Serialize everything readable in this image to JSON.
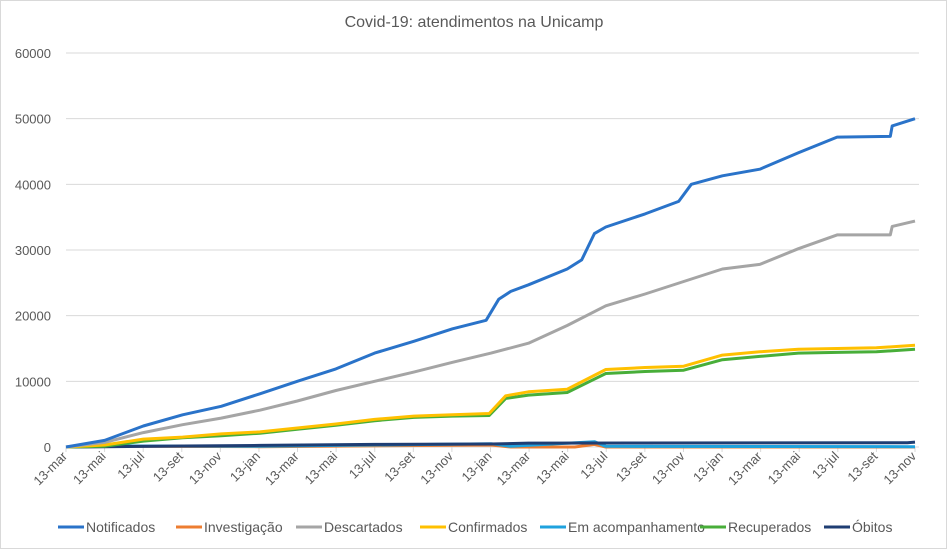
{
  "chart_data": {
    "type": "line",
    "title": "Covid-19: atendimentos  na Unicamp",
    "xlabel": "",
    "ylabel": "",
    "ylim": [
      0,
      60000
    ],
    "yticks": [
      0,
      10000,
      20000,
      30000,
      40000,
      50000,
      60000
    ],
    "xlim": [
      "2020-03-13",
      "2023-11-13"
    ],
    "xtick_labels": [
      "13-mar",
      "13-mai",
      "13-jul",
      "13-set",
      "13-nov",
      "13-jan",
      "13-mar",
      "13-mai",
      "13-jul",
      "13-set",
      "13-nov",
      "13-jan",
      "13-mar",
      "13-mai",
      "13-jul",
      "13-set",
      "13-nov",
      "13-jan",
      "13-mar",
      "13-mai",
      "13-jul",
      "13-set",
      "13-nov"
    ],
    "grid": "horizontal",
    "legend_position": "bottom",
    "series": [
      {
        "name": "Notificados",
        "color": "#2A73C9",
        "points": [
          [
            "2020-03-13",
            0
          ],
          [
            "2020-05-13",
            1000
          ],
          [
            "2020-07-13",
            3200
          ],
          [
            "2020-09-13",
            4900
          ],
          [
            "2020-11-13",
            6200
          ],
          [
            "2021-01-13",
            8100
          ],
          [
            "2021-03-13",
            10000
          ],
          [
            "2021-05-13",
            11900
          ],
          [
            "2021-07-13",
            14300
          ],
          [
            "2021-09-13",
            16100
          ],
          [
            "2021-11-13",
            18000
          ],
          [
            "2022-01-05",
            19300
          ],
          [
            "2022-01-25",
            22500
          ],
          [
            "2022-02-13",
            23700
          ],
          [
            "2022-03-13",
            24700
          ],
          [
            "2022-05-13",
            27100
          ],
          [
            "2022-06-05",
            28500
          ],
          [
            "2022-06-25",
            32500
          ],
          [
            "2022-07-13",
            33500
          ],
          [
            "2022-09-13",
            35500
          ],
          [
            "2022-11-05",
            37400
          ],
          [
            "2022-11-25",
            40000
          ],
          [
            "2023-01-13",
            41300
          ],
          [
            "2023-03-13",
            42300
          ],
          [
            "2023-05-13",
            44800
          ],
          [
            "2023-07-13",
            47200
          ],
          [
            "2023-10-05",
            47300
          ],
          [
            "2023-10-08",
            48900
          ],
          [
            "2023-11-13",
            50000
          ]
        ]
      },
      {
        "name": "Investigação",
        "color": "#ED7D31",
        "points": [
          [
            "2020-03-13",
            0
          ],
          [
            "2020-06-13",
            100
          ],
          [
            "2021-01-13",
            50
          ],
          [
            "2022-01-13",
            300
          ],
          [
            "2022-02-13",
            0
          ],
          [
            "2022-05-25",
            0
          ],
          [
            "2022-06-25",
            400
          ],
          [
            "2022-07-13",
            0
          ],
          [
            "2023-11-13",
            0
          ]
        ]
      },
      {
        "name": "Descartados",
        "color": "#A5A5A5",
        "points": [
          [
            "2020-03-13",
            0
          ],
          [
            "2020-05-13",
            700
          ],
          [
            "2020-07-13",
            2200
          ],
          [
            "2020-09-13",
            3400
          ],
          [
            "2020-11-13",
            4400
          ],
          [
            "2021-01-13",
            5600
          ],
          [
            "2021-03-13",
            7000
          ],
          [
            "2021-05-13",
            8600
          ],
          [
            "2021-07-13",
            10000
          ],
          [
            "2021-09-13",
            11400
          ],
          [
            "2021-11-13",
            12900
          ],
          [
            "2022-01-13",
            14300
          ],
          [
            "2022-03-13",
            15800
          ],
          [
            "2022-05-13",
            18500
          ],
          [
            "2022-07-13",
            21500
          ],
          [
            "2022-09-13",
            23300
          ],
          [
            "2022-11-13",
            25200
          ],
          [
            "2023-01-13",
            27100
          ],
          [
            "2023-03-13",
            27800
          ],
          [
            "2023-05-13",
            30200
          ],
          [
            "2023-07-13",
            32300
          ],
          [
            "2023-10-05",
            32300
          ],
          [
            "2023-10-08",
            33600
          ],
          [
            "2023-11-13",
            34400
          ]
        ]
      },
      {
        "name": "Confirmados",
        "color": "#FFC000",
        "points": [
          [
            "2020-03-13",
            0
          ],
          [
            "2020-05-13",
            300
          ],
          [
            "2020-07-13",
            1200
          ],
          [
            "2020-09-13",
            1500
          ],
          [
            "2020-11-13",
            2000
          ],
          [
            "2021-01-13",
            2300
          ],
          [
            "2021-03-13",
            2900
          ],
          [
            "2021-05-13",
            3500
          ],
          [
            "2021-07-13",
            4200
          ],
          [
            "2021-09-13",
            4700
          ],
          [
            "2021-11-13",
            4900
          ],
          [
            "2022-01-10",
            5100
          ],
          [
            "2022-02-05",
            7800
          ],
          [
            "2022-03-13",
            8400
          ],
          [
            "2022-05-13",
            8800
          ],
          [
            "2022-07-13",
            11800
          ],
          [
            "2022-09-13",
            12100
          ],
          [
            "2022-11-13",
            12300
          ],
          [
            "2023-01-13",
            14000
          ],
          [
            "2023-03-13",
            14500
          ],
          [
            "2023-05-13",
            14900
          ],
          [
            "2023-07-13",
            15000
          ],
          [
            "2023-09-13",
            15100
          ],
          [
            "2023-11-13",
            15500
          ]
        ]
      },
      {
        "name": "Em acompanhamento",
        "color": "#1FA2DE",
        "points": [
          [
            "2020-03-13",
            0
          ],
          [
            "2020-06-13",
            150
          ],
          [
            "2021-01-13",
            100
          ],
          [
            "2022-01-13",
            500
          ],
          [
            "2022-02-13",
            100
          ],
          [
            "2022-06-25",
            800
          ],
          [
            "2022-07-13",
            100
          ],
          [
            "2023-11-13",
            50
          ]
        ]
      },
      {
        "name": "Recuperados",
        "color": "#48AE39",
        "points": [
          [
            "2020-03-13",
            0
          ],
          [
            "2020-05-13",
            100
          ],
          [
            "2020-07-13",
            900
          ],
          [
            "2020-09-13",
            1400
          ],
          [
            "2020-11-13",
            1700
          ],
          [
            "2021-01-13",
            2100
          ],
          [
            "2021-03-13",
            2700
          ],
          [
            "2021-05-13",
            3300
          ],
          [
            "2021-07-13",
            4000
          ],
          [
            "2021-09-13",
            4500
          ],
          [
            "2021-11-13",
            4700
          ],
          [
            "2022-01-10",
            4800
          ],
          [
            "2022-02-05",
            7400
          ],
          [
            "2022-03-13",
            7900
          ],
          [
            "2022-05-13",
            8300
          ],
          [
            "2022-07-13",
            11200
          ],
          [
            "2022-09-13",
            11500
          ],
          [
            "2022-11-13",
            11700
          ],
          [
            "2023-01-13",
            13300
          ],
          [
            "2023-03-13",
            13800
          ],
          [
            "2023-05-13",
            14300
          ],
          [
            "2023-07-13",
            14400
          ],
          [
            "2023-09-13",
            14500
          ],
          [
            "2023-11-13",
            14900
          ]
        ]
      },
      {
        "name": "Óbitos",
        "color": "#1F3E73",
        "points": [
          [
            "2020-03-13",
            0
          ],
          [
            "2020-05-13",
            50
          ],
          [
            "2020-09-13",
            150
          ],
          [
            "2021-01-13",
            250
          ],
          [
            "2021-07-13",
            400
          ],
          [
            "2022-01-13",
            450
          ],
          [
            "2022-03-13",
            600
          ],
          [
            "2023-11-01",
            650
          ],
          [
            "2023-11-13",
            750
          ]
        ]
      }
    ]
  }
}
